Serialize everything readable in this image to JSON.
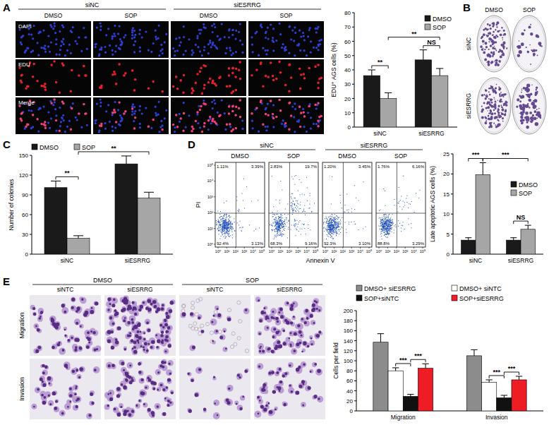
{
  "chart_data": [
    {
      "type": "bar",
      "y_label": "EDU⁺ AGS cells (%)",
      "categories": [
        "siNC",
        "siESRRG"
      ],
      "series": [
        {
          "name": "DMSO",
          "color": "#1a1a1a",
          "values": [
            36,
            47
          ],
          "errors": [
            4,
            7
          ]
        },
        {
          "name": "SOP",
          "color": "#a6a6a6",
          "values": [
            20,
            36
          ],
          "errors": [
            4,
            5
          ]
        }
      ],
      "ylim": [
        0,
        80
      ],
      "yticks": [
        0,
        10,
        20,
        30,
        40,
        50,
        60,
        70,
        80
      ],
      "legend": "upper right",
      "annotations": [
        {
          "text": "**",
          "from": [
            "siNC",
            "DMSO"
          ],
          "to": [
            "siNC",
            "SOP"
          ]
        },
        {
          "text": "NS",
          "from": [
            "siESRRG",
            "DMSO"
          ],
          "to": [
            "siESRRG",
            "SOP"
          ]
        },
        {
          "text": "**",
          "from": [
            "siNC",
            "SOP"
          ],
          "to": [
            "siESRRG",
            "SOP"
          ]
        }
      ]
    },
    {
      "type": "bar",
      "y_label": "Number of colonies",
      "categories": [
        "siNC",
        "siESRRG"
      ],
      "series": [
        {
          "name": "DMSO",
          "color": "#1a1a1a",
          "values": [
            101,
            137
          ],
          "errors": [
            10,
            12
          ]
        },
        {
          "name": "SOP",
          "color": "#a6a6a6",
          "values": [
            24,
            85
          ],
          "errors": [
            4,
            9
          ]
        }
      ],
      "ylim": [
        0,
        150
      ],
      "yticks": [
        0,
        30,
        60,
        90,
        120,
        150
      ],
      "legend": "top",
      "annotations": [
        {
          "text": "**",
          "from": [
            "siNC",
            "DMSO"
          ],
          "to": [
            "siNC",
            "SOP"
          ]
        },
        {
          "text": "**",
          "from": [
            "siNC",
            "SOP"
          ],
          "to": [
            "siESRRG",
            "SOP"
          ]
        }
      ]
    },
    {
      "type": "bar",
      "y_label": "Late apoptotic AGS cells (%)",
      "categories": [
        "siNC",
        "siESRRG"
      ],
      "series": [
        {
          "name": "DMSO",
          "color": "#1a1a1a",
          "values": [
            3.5,
            3.5
          ],
          "errors": [
            0.6,
            0.6
          ]
        },
        {
          "name": "SOP",
          "color": "#a6a6a6",
          "values": [
            19.8,
            6.2
          ],
          "errors": [
            3,
            1
          ]
        }
      ],
      "ylim": [
        0,
        25
      ],
      "yticks": [
        0,
        5,
        10,
        15,
        20,
        25
      ],
      "legend": "center right",
      "annotations": [
        {
          "text": "***",
          "from": [
            "siNC",
            "DMSO"
          ],
          "to": [
            "siNC",
            "SOP"
          ]
        },
        {
          "text": "NS",
          "from": [
            "siESRRG",
            "DMSO"
          ],
          "to": [
            "siESRRG",
            "SOP"
          ]
        },
        {
          "text": "***",
          "from": [
            "siNC",
            "SOP"
          ],
          "to": [
            "siESRRG",
            "SOP"
          ]
        }
      ]
    },
    {
      "type": "bar",
      "y_label": "Cells per field",
      "categories": [
        "Migration",
        "Invasion"
      ],
      "series": [
        {
          "name": "DMSO+ siESRRG",
          "color": "#8c8c8c",
          "values": [
            137,
            110
          ],
          "errors": [
            17,
            12
          ]
        },
        {
          "name": "DMSO+ siNTC",
          "color": "#ffffff",
          "values": [
            80,
            57
          ],
          "errors": [
            6,
            5
          ]
        },
        {
          "name": "SOP+siNTC",
          "color": "#111111",
          "values": [
            29,
            26
          ],
          "errors": [
            4,
            5
          ]
        },
        {
          "name": "SOP+siESRRG",
          "color": "#ee1c24",
          "values": [
            85,
            62
          ],
          "errors": [
            9,
            7
          ]
        }
      ],
      "ylim": [
        0,
        200
      ],
      "yticks": [
        0,
        20,
        40,
        60,
        80,
        100,
        120,
        140,
        160,
        180,
        200
      ],
      "legend": "top",
      "annotations": [
        {
          "text": "***",
          "from": [
            "Migration",
            "DMSO+ siNTC"
          ],
          "to": [
            "Migration",
            "SOP+siNTC"
          ]
        },
        {
          "text": "***",
          "from": [
            "Migration",
            "SOP+siNTC"
          ],
          "to": [
            "Migration",
            "SOP+siESRRG"
          ]
        },
        {
          "text": "***",
          "from": [
            "Invasion",
            "DMSO+ siNTC"
          ],
          "to": [
            "Invasion",
            "SOP+siNTC"
          ]
        },
        {
          "text": "***",
          "from": [
            "Invasion",
            "SOP+siNTC"
          ],
          "to": [
            "Invasion",
            "SOP+siESRRG"
          ]
        }
      ]
    }
  ],
  "panels": [
    {
      "label": "A",
      "groups": [
        "siNC",
        "siESRRG"
      ],
      "columns": [
        "DMSO",
        "SOP",
        "DMSO",
        "SOP"
      ],
      "rows": [
        "DAPI",
        "EDU",
        "Merge"
      ]
    },
    {
      "label": "B",
      "columns": [
        "DMSO",
        "SOP"
      ],
      "rows": [
        "siNC",
        "siESRRG"
      ]
    },
    {
      "label": "C"
    },
    {
      "label": "D",
      "groups": [
        "siNC",
        "siESRRG"
      ],
      "columns": [
        "DMSO",
        "SOP",
        "DMSO",
        "SOP"
      ],
      "x_label": "Annexin V",
      "y_label": "PI",
      "ticks": [
        "10⁰",
        "10¹",
        "10²",
        "10³",
        "10⁴",
        "10⁵"
      ],
      "quadrants": [
        [
          "1.11%",
          "3.39%",
          "92.4%",
          "3.13%"
        ],
        [
          "2.83%",
          "19.7%",
          "68.3%",
          "9.16%"
        ],
        [
          "1.20%",
          "3.45%",
          "92.3%",
          "3.10%"
        ],
        [
          "1.76%",
          "6.16%",
          "88.8%",
          "3.29%"
        ]
      ]
    },
    {
      "label": "E",
      "groups": [
        "DMSO",
        "SOP"
      ],
      "columns": [
        "siNTC",
        "siESRRG",
        "siNTC",
        "siESRRG"
      ],
      "rows": [
        "Migration",
        "Invasion"
      ]
    }
  ]
}
